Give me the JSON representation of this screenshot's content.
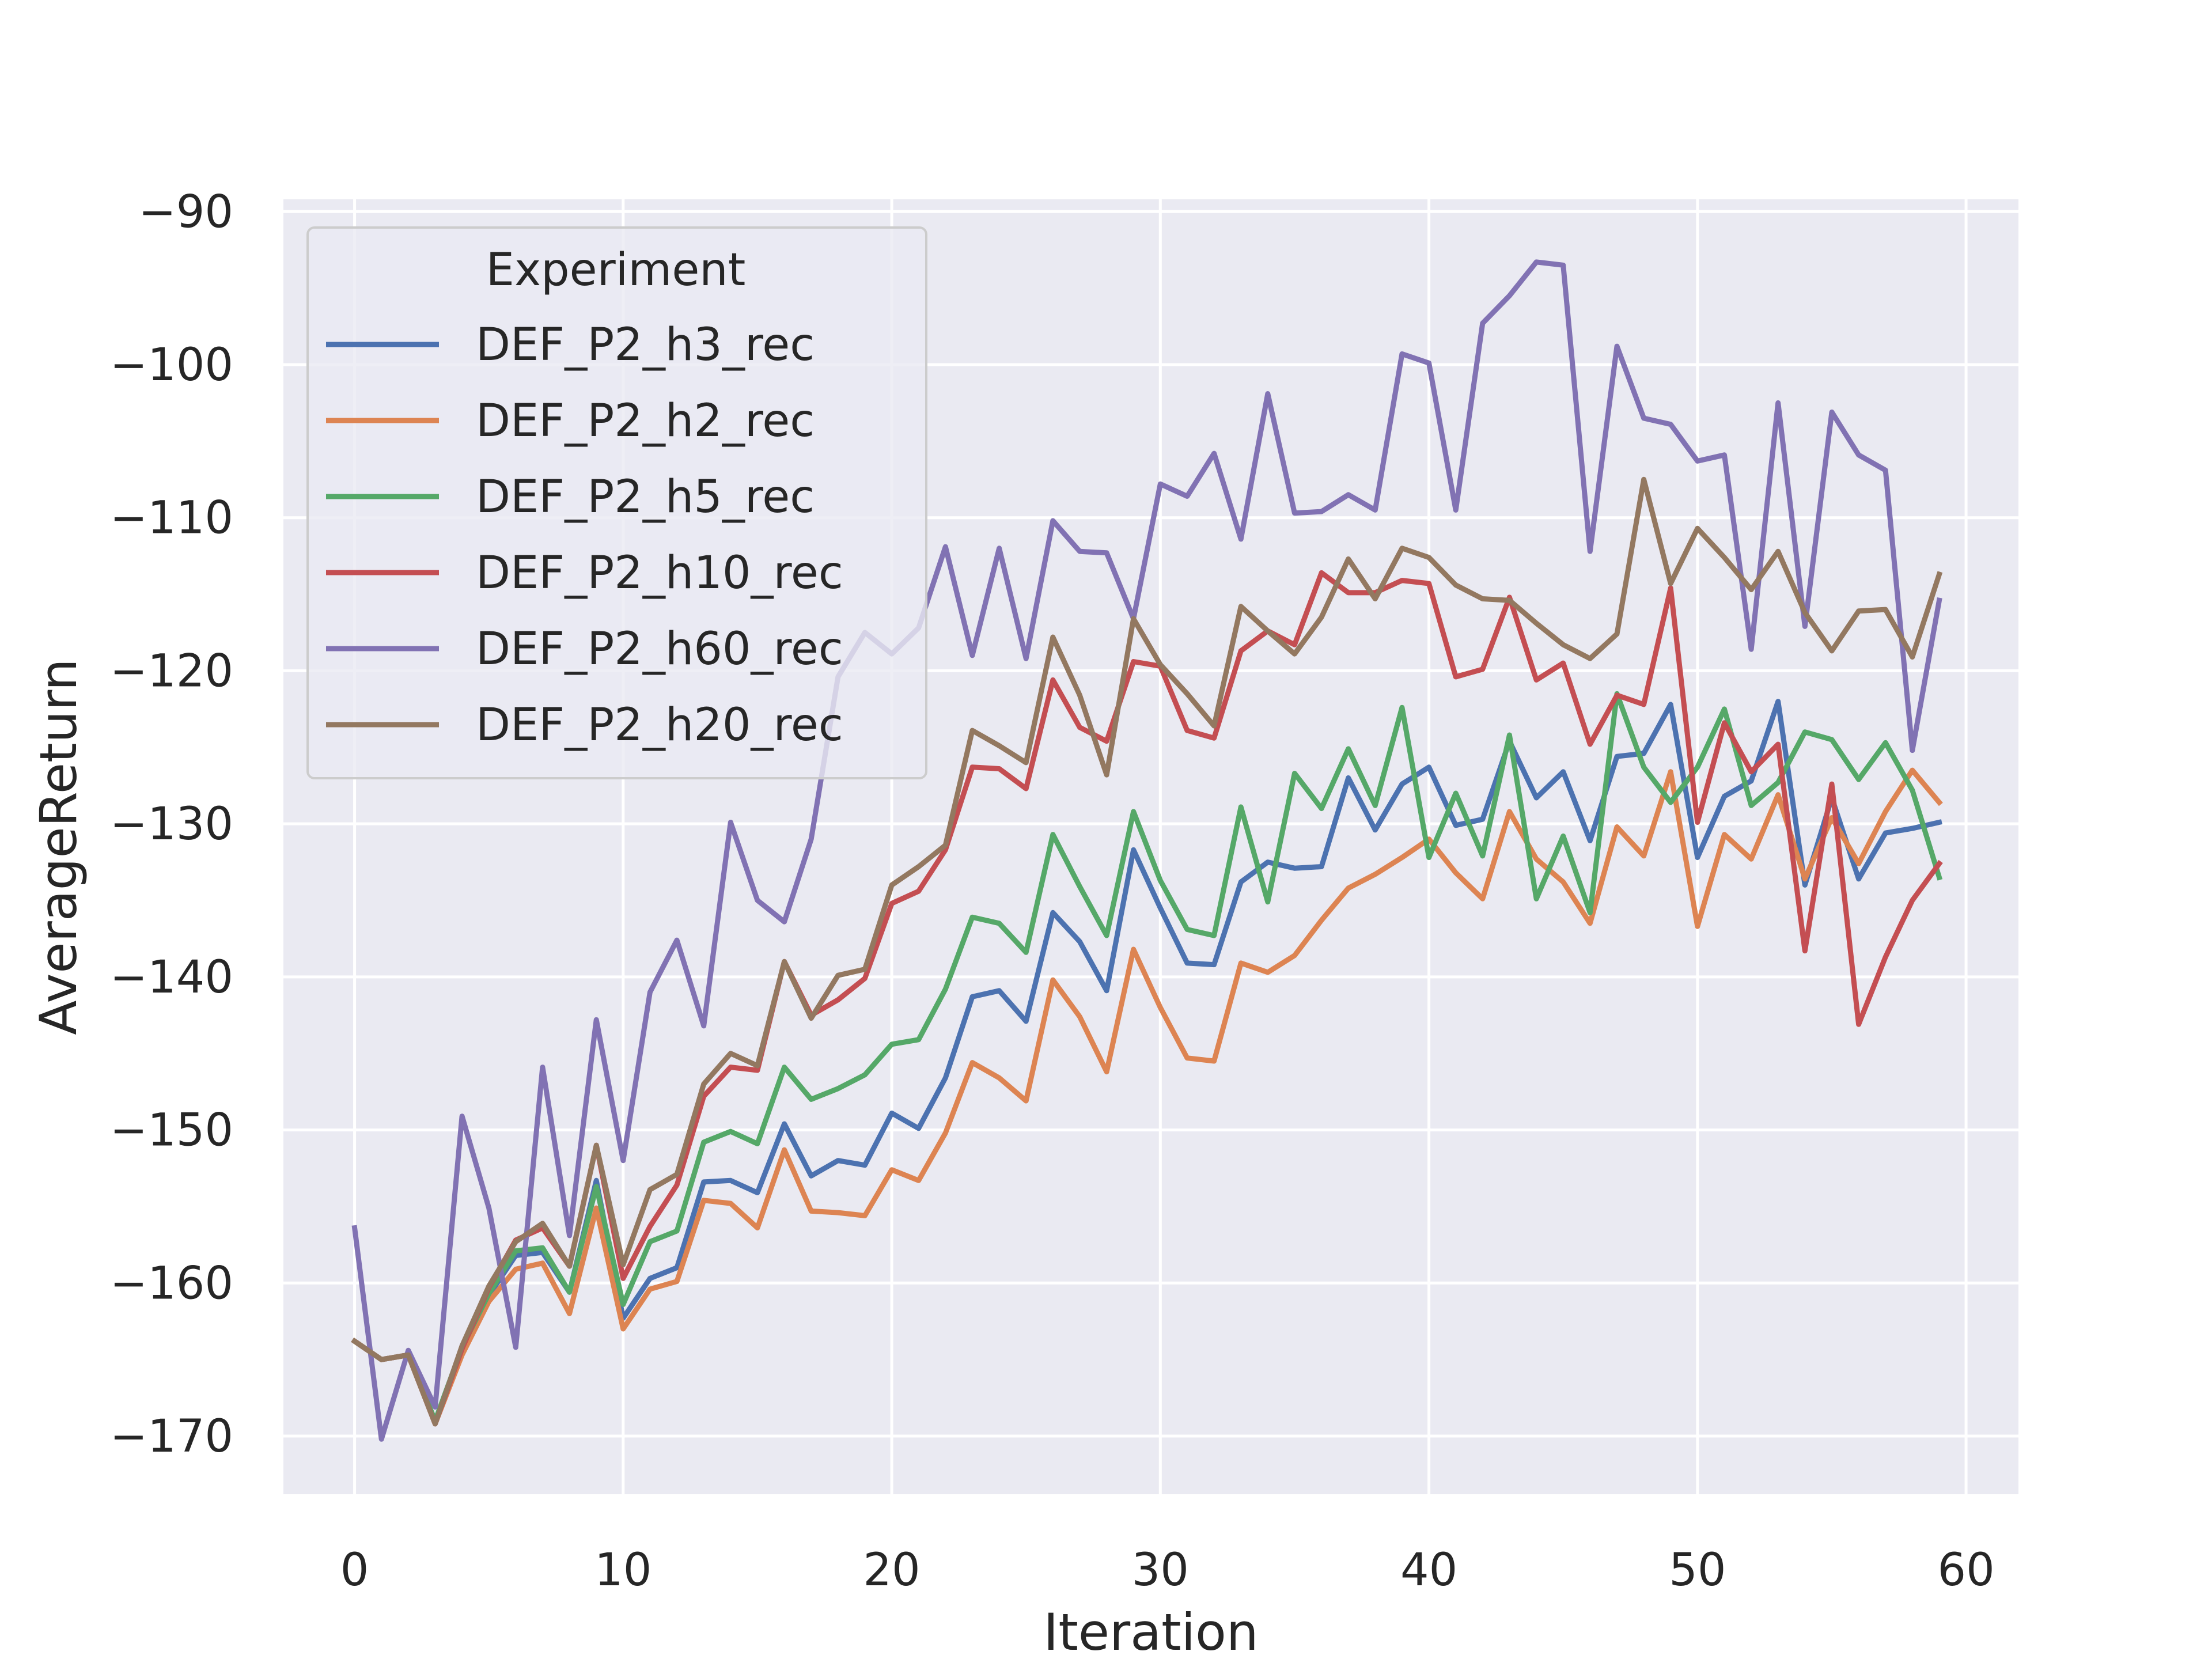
{
  "chart_data": {
    "type": "line",
    "title": "",
    "xlabel": "Iteration",
    "ylabel": "AverageReturn",
    "xlim": [
      -2.65,
      61.95
    ],
    "ylim": [
      -173.8,
      -89.2
    ],
    "xticks": [
      0,
      10,
      20,
      30,
      40,
      50,
      60
    ],
    "yticks": [
      -170,
      -160,
      -150,
      -140,
      -130,
      -120,
      -110,
      -100,
      -90
    ],
    "grid": true,
    "legend": {
      "title": "Experiment",
      "placement": "upper-left"
    },
    "x": [
      0,
      1,
      2,
      3,
      4,
      5,
      6,
      7,
      8,
      9,
      10,
      11,
      12,
      13,
      14,
      15,
      16,
      17,
      18,
      19,
      20,
      21,
      22,
      23,
      24,
      25,
      26,
      27,
      28,
      29,
      30,
      31,
      32,
      33,
      34,
      35,
      36,
      37,
      38,
      39,
      40,
      41,
      42,
      43,
      44,
      45,
      46,
      47,
      48,
      49,
      50,
      51,
      52,
      53,
      54,
      55,
      56,
      57,
      58,
      59
    ],
    "series": [
      {
        "name": "DEF_P2_h3_rec",
        "color": "#4c72b0",
        "values": [
          -163.8,
          -165.0,
          -164.7,
          -169.1,
          -164.6,
          -160.8,
          -158.2,
          -158.0,
          -160.6,
          -153.3,
          -162.3,
          -159.7,
          -159.0,
          -153.4,
          -153.3,
          -154.1,
          -149.6,
          -153.0,
          -152.0,
          -152.3,
          -148.9,
          -149.9,
          -146.6,
          -141.3,
          -140.9,
          -142.9,
          -135.8,
          -137.7,
          -140.9,
          -131.7,
          -135.5,
          -139.1,
          -139.2,
          -133.8,
          -132.5,
          -132.9,
          -132.8,
          -127.0,
          -130.4,
          -127.4,
          -126.3,
          -130.1,
          -129.7,
          -124.6,
          -128.3,
          -126.6,
          -131.1,
          -125.6,
          -125.4,
          -122.2,
          -132.2,
          -128.2,
          -127.2,
          -122.0,
          -134.0,
          -128.3,
          -133.6,
          -130.6,
          -130.3,
          -129.9
        ]
      },
      {
        "name": "DEF_P2_h2_rec",
        "color": "#dd8452",
        "values": [
          -163.8,
          -165.0,
          -164.7,
          -169.2,
          -164.7,
          -161.2,
          -159.1,
          -158.7,
          -162.0,
          -155.1,
          -163.0,
          -160.4,
          -159.9,
          -154.6,
          -154.8,
          -156.4,
          -151.3,
          -155.3,
          -155.4,
          -155.6,
          -152.6,
          -153.3,
          -150.2,
          -145.6,
          -146.6,
          -148.1,
          -140.2,
          -142.6,
          -146.2,
          -138.2,
          -142.0,
          -145.3,
          -145.5,
          -139.1,
          -139.7,
          -138.6,
          -136.3,
          -134.2,
          -133.3,
          -132.2,
          -131.0,
          -133.2,
          -134.9,
          -129.2,
          -132.3,
          -133.8,
          -136.5,
          -130.2,
          -132.1,
          -126.6,
          -136.7,
          -130.7,
          -132.3,
          -128.1,
          -133.6,
          -129.6,
          -132.6,
          -129.2,
          -126.5,
          -128.6
        ]
      },
      {
        "name": "DEF_P2_h5_rec",
        "color": "#55a868",
        "values": [
          -163.8,
          -165.0,
          -164.7,
          -169.0,
          -164.2,
          -160.7,
          -157.9,
          -157.7,
          -160.6,
          -153.7,
          -161.4,
          -157.3,
          -156.6,
          -150.8,
          -150.1,
          -150.9,
          -145.9,
          -148.0,
          -147.3,
          -146.4,
          -144.4,
          -144.1,
          -140.8,
          -136.1,
          -136.5,
          -138.4,
          -130.7,
          -134.1,
          -137.3,
          -129.2,
          -133.7,
          -136.9,
          -137.3,
          -128.9,
          -135.1,
          -126.7,
          -129.0,
          -125.1,
          -128.8,
          -122.4,
          -132.2,
          -128.0,
          -132.1,
          -124.2,
          -134.9,
          -130.8,
          -135.8,
          -121.5,
          -126.3,
          -128.6,
          -126.3,
          -122.5,
          -128.8,
          -127.3,
          -124.0,
          -124.5,
          -127.1,
          -124.7,
          -127.8,
          -133.5
        ]
      },
      {
        "name": "DEF_P2_h10_rec",
        "color": "#c44e52",
        "values": [
          -163.8,
          -165.0,
          -164.7,
          -169.2,
          -164.3,
          -160.3,
          -157.2,
          -156.4,
          -158.9,
          -151.0,
          -159.7,
          -156.3,
          -153.6,
          -147.8,
          -145.9,
          -146.1,
          -139.0,
          -142.5,
          -141.5,
          -140.1,
          -135.2,
          -134.4,
          -131.7,
          -126.3,
          -126.4,
          -127.7,
          -120.6,
          -123.7,
          -124.6,
          -119.4,
          -119.7,
          -123.9,
          -124.4,
          -118.7,
          -117.4,
          -118.3,
          -113.6,
          -114.9,
          -114.9,
          -114.1,
          -114.3,
          -120.4,
          -119.9,
          -115.2,
          -120.6,
          -119.5,
          -124.8,
          -121.6,
          -122.2,
          -114.6,
          -129.9,
          -123.4,
          -126.6,
          -124.8,
          -138.3,
          -127.4,
          -143.1,
          -138.7,
          -135.0,
          -132.6
        ]
      },
      {
        "name": "DEF_P2_h60_rec",
        "color": "#8172b3",
        "values": [
          -156.4,
          -170.2,
          -164.4,
          -168.1,
          -149.1,
          -155.1,
          -164.2,
          -145.9,
          -156.9,
          -142.8,
          -152.0,
          -141.0,
          -137.6,
          -143.2,
          -129.9,
          -135.0,
          -136.4,
          -131.0,
          -120.4,
          -117.5,
          -118.9,
          -117.2,
          -111.9,
          -119.0,
          -112.0,
          -119.2,
          -110.2,
          -112.2,
          -112.3,
          -116.6,
          -107.8,
          -108.6,
          -105.8,
          -111.4,
          -101.9,
          -109.7,
          -109.6,
          -108.5,
          -109.5,
          -99.3,
          -99.9,
          -109.5,
          -97.3,
          -95.5,
          -93.3,
          -93.5,
          -112.2,
          -98.8,
          -103.5,
          -103.9,
          -106.3,
          -105.9,
          -118.6,
          -102.5,
          -117.1,
          -103.1,
          -105.9,
          -106.9,
          -125.2,
          -115.4
        ]
      },
      {
        "name": "DEF_P2_h20_rec",
        "color": "#937860",
        "values": [
          -163.8,
          -165.0,
          -164.7,
          -169.2,
          -164.1,
          -160.2,
          -157.3,
          -156.1,
          -158.9,
          -151.0,
          -158.8,
          -153.9,
          -152.9,
          -147.0,
          -145.0,
          -145.8,
          -139.0,
          -142.7,
          -139.9,
          -139.5,
          -134.0,
          -132.8,
          -131.4,
          -123.9,
          -124.9,
          -126.0,
          -117.8,
          -121.6,
          -126.8,
          -116.6,
          -119.6,
          -121.5,
          -123.6,
          -115.8,
          -117.4,
          -118.9,
          -116.5,
          -112.7,
          -115.3,
          -112.0,
          -112.6,
          -114.4,
          -115.3,
          -115.4,
          -116.9,
          -118.3,
          -119.2,
          -117.6,
          -107.5,
          -114.3,
          -110.7,
          -112.6,
          -114.7,
          -112.2,
          -116.2,
          -118.7,
          -116.1,
          -116.0,
          -119.1,
          -113.7
        ]
      }
    ]
  }
}
